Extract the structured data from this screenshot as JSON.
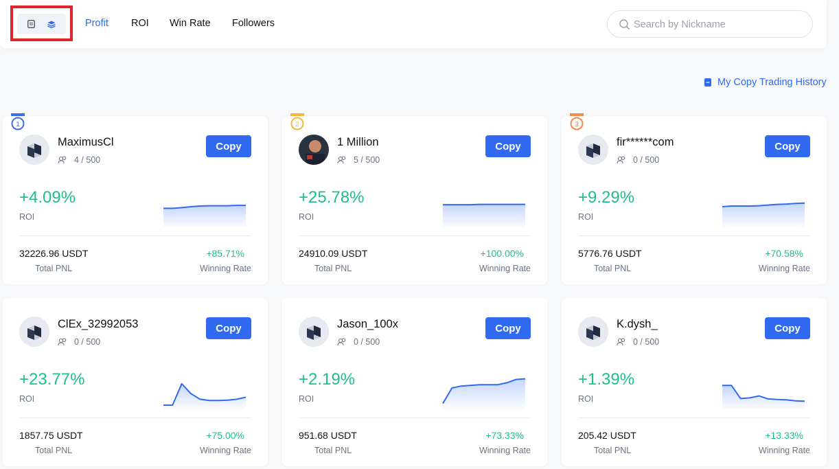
{
  "nav": {
    "tabs": [
      {
        "label": "Profit",
        "active": true
      },
      {
        "label": "ROI",
        "active": false
      },
      {
        "label": "Win Rate",
        "active": false
      },
      {
        "label": "Followers",
        "active": false
      }
    ],
    "view_toggle": {
      "list_icon": "list-view-icon",
      "grid_icon": "grid-view-icon",
      "selected": "grid"
    }
  },
  "search": {
    "placeholder": "Search by Nickname",
    "value": ""
  },
  "history_link": {
    "label": "My Copy Trading History",
    "icon": "document-icon"
  },
  "labels": {
    "copy": "Copy",
    "roi": "ROI",
    "total_pnl": "Total PNL",
    "winning_rate": "Winning Rate"
  },
  "colors": {
    "accent": "#2f6af1",
    "positive": "#1fbe8c",
    "highlight": "#e3232b",
    "rank1": "#3b6ee8",
    "rank2": "#f4b73a",
    "rank3": "#f0894a"
  },
  "traders": [
    {
      "rank": "1",
      "nickname": "MaximusCl",
      "followers": "4 / 500",
      "roi": "+4.09%",
      "total_pnl": "32226.96 USDT",
      "winning_rate": "+85.71%",
      "sparkline": [
        0.45,
        0.45,
        0.47,
        0.5,
        0.52,
        0.53,
        0.53,
        0.53,
        0.54,
        0.54
      ]
    },
    {
      "rank": "2",
      "nickname": "1 Million",
      "followers": "5 / 500",
      "roi": "+25.78%",
      "total_pnl": "24910.09 USDT",
      "winning_rate": "+100.00%",
      "sparkline": [
        0.56,
        0.56,
        0.56,
        0.56,
        0.57,
        0.57,
        0.57,
        0.57,
        0.57,
        0.57
      ]
    },
    {
      "rank": "3",
      "nickname": "fir******com",
      "followers": "0 / 500",
      "roi": "+9.29%",
      "total_pnl": "5776.76 USDT",
      "winning_rate": "+70.58%",
      "sparkline": [
        0.5,
        0.52,
        0.52,
        0.52,
        0.53,
        0.55,
        0.57,
        0.58,
        0.6,
        0.61
      ]
    },
    {
      "rank": "",
      "nickname": "ClEx_32992053",
      "followers": "0 / 500",
      "roi": "+23.77%",
      "total_pnl": "1857.75 USDT",
      "winning_rate": "+75.00%",
      "sparkline": [
        0.0,
        0.0,
        0.65,
        0.35,
        0.18,
        0.14,
        0.14,
        0.15,
        0.18,
        0.24
      ]
    },
    {
      "rank": "",
      "nickname": "Jason_100x",
      "followers": "0 / 500",
      "roi": "+2.19%",
      "total_pnl": "951.68 USDT",
      "winning_rate": "+73.33%",
      "sparkline": [
        0.05,
        0.52,
        0.58,
        0.6,
        0.62,
        0.62,
        0.62,
        0.68,
        0.78,
        0.8
      ]
    },
    {
      "rank": "",
      "nickname": "K.dysh_",
      "followers": "0 / 500",
      "roi": "+1.39%",
      "total_pnl": "205.42 USDT",
      "winning_rate": "+13.33%",
      "sparkline": [
        0.6,
        0.6,
        0.2,
        0.22,
        0.28,
        0.19,
        0.17,
        0.16,
        0.13,
        0.12
      ]
    }
  ]
}
